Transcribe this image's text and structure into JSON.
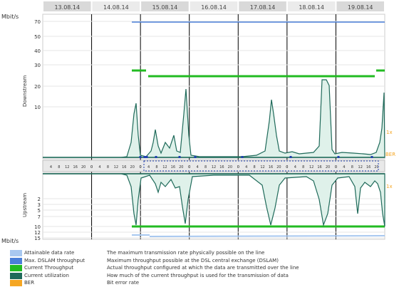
{
  "header_dates": [
    "13.08.14",
    "14.08.14",
    "15.08.14",
    "16.08.14",
    "17.08.14",
    "18.08.14",
    "19.08.14"
  ],
  "header_bg": "#d9d9d9",
  "unit_label": "Mbit/s",
  "downstream": {
    "label": "Downstream",
    "ticks": [
      "70",
      "50",
      "40",
      "30",
      "20",
      "10"
    ],
    "marker_1x": "1x",
    "marker_ber": "BER"
  },
  "upstream": {
    "label": "Upstream",
    "ticks": [
      "2",
      "3",
      "5",
      "7",
      "10",
      "12",
      "15"
    ],
    "marker_1x": "1x"
  },
  "timeline_hours": [
    "4",
    "8",
    "12",
    "16",
    "20"
  ],
  "timeline_midnight": "0",
  "legend": [
    {
      "label": "Attainable data rate",
      "desc": "The maximum transmission rate physically possible on the line",
      "color": "#a8c8f0"
    },
    {
      "label": "Max. DSLAM throughput",
      "desc": "Maximum throughput possible at the DSL central exchange (DSLAM)",
      "color": "#4a7fd8"
    },
    {
      "label": "Current Throughput",
      "desc": "Actual throughput configured at which the data are transmitted over the line",
      "color": "#22bb22"
    },
    {
      "label": "Current utilization",
      "desc": "How much of the current throughput is used for the transmission of data",
      "color": "#1f6a5a"
    },
    {
      "label": "BER",
      "desc": "Bit error rate",
      "color": "#f5a623"
    }
  ],
  "chart_data": {
    "type": "line",
    "x": [
      "13.08.14",
      "14.08.14",
      "15.08.14",
      "16.08.14",
      "17.08.14",
      "18.08.14",
      "19.08.14"
    ],
    "ylabel": "Mbit/s",
    "downstream": {
      "max_dslam_throughput": 70,
      "current_throughput": 25,
      "utilization_peaks": [
        17,
        9,
        15,
        13,
        23,
        11,
        12
      ]
    },
    "upstream": {
      "current_throughput": 10
    }
  }
}
